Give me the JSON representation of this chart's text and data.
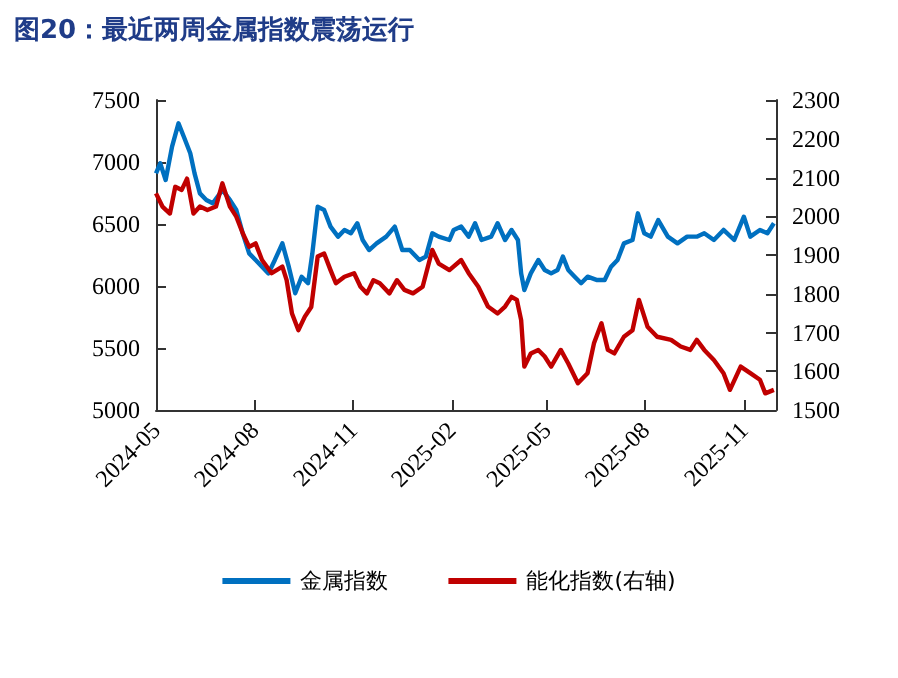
{
  "chart_data": {
    "type": "line",
    "title": "图20：最近两周金属指数震荡运行",
    "xlim": [
      "2024-05-01",
      "2025-12-01"
    ],
    "xticks": [
      "2024-05",
      "2024-08",
      "2024-11",
      "2025-02",
      "2025-05",
      "2025-08",
      "2025-11"
    ],
    "ylim": [
      5000,
      7500
    ],
    "yticks": [
      5000,
      5500,
      6000,
      6500,
      7000,
      7500
    ],
    "y2lim": [
      1500,
      2300
    ],
    "y2ticks": [
      1500,
      1600,
      1700,
      1800,
      1900,
      2000,
      2100,
      2200,
      2300
    ],
    "grid": false,
    "legend": "bottom",
    "marker": "none",
    "line_style": "solid",
    "series": [
      {
        "name": "金属指数",
        "color": "#0070c0",
        "x": [
          "2024-05-01",
          "2024-05-05",
          "2024-05-10",
          "2024-05-16",
          "2024-05-22",
          "2024-05-27",
          "2024-06-02",
          "2024-06-06",
          "2024-06-11",
          "2024-06-17",
          "2024-06-23",
          "2024-07-02",
          "2024-07-09",
          "2024-07-15",
          "2024-07-21",
          "2024-07-27",
          "2024-08-02",
          "2024-08-08",
          "2024-08-14",
          "2024-08-20",
          "2024-08-27",
          "2024-09-02",
          "2024-09-08",
          "2024-09-14",
          "2024-09-20",
          "2024-09-24",
          "2024-09-29",
          "2024-10-05",
          "2024-10-11",
          "2024-10-18",
          "2024-10-24",
          "2024-10-30",
          "2024-11-05",
          "2024-11-10",
          "2024-11-16",
          "2024-11-23",
          "2024-12-02",
          "2024-12-10",
          "2024-12-17",
          "2024-12-24",
          "2025-01-02",
          "2025-01-08",
          "2025-01-14",
          "2025-01-20",
          "2025-01-30",
          "2025-02-03",
          "2025-02-10",
          "2025-02-17",
          "2025-02-23",
          "2025-03-01",
          "2025-03-10",
          "2025-03-16",
          "2025-03-23",
          "2025-03-29",
          "2025-04-04",
          "2025-04-07",
          "2025-04-10",
          "2025-04-16",
          "2025-04-23",
          "2025-04-29",
          "2025-05-05",
          "2025-05-11",
          "2025-05-16",
          "2025-05-21",
          "2025-05-27",
          "2025-06-02",
          "2025-06-08",
          "2025-06-17",
          "2025-06-24",
          "2025-06-30",
          "2025-07-06",
          "2025-07-12",
          "2025-07-20",
          "2025-07-25",
          "2025-07-31",
          "2025-08-06",
          "2025-08-13",
          "2025-08-22",
          "2025-08-31",
          "2025-09-09",
          "2025-09-18",
          "2025-09-25",
          "2025-10-04",
          "2025-10-13",
          "2025-10-23",
          "2025-11-01",
          "2025-11-07",
          "2025-11-16",
          "2025-11-23",
          "2025-11-29"
        ],
        "values": [
          6908,
          6989,
          6855,
          7124,
          7312,
          7204,
          7070,
          6908,
          6747,
          6694,
          6667,
          6774,
          6694,
          6613,
          6425,
          6263,
          6210,
          6156,
          6102,
          6210,
          6344,
          6156,
          5941,
          6075,
          6022,
          6263,
          6640,
          6613,
          6479,
          6398,
          6452,
          6425,
          6506,
          6371,
          6290,
          6344,
          6398,
          6479,
          6290,
          6290,
          6210,
          6237,
          6425,
          6398,
          6371,
          6452,
          6479,
          6398,
          6506,
          6371,
          6398,
          6506,
          6371,
          6452,
          6371,
          6102,
          5968,
          6102,
          6210,
          6129,
          6102,
          6129,
          6237,
          6129,
          6075,
          6022,
          6075,
          6048,
          6048,
          6156,
          6210,
          6344,
          6371,
          6586,
          6425,
          6398,
          6532,
          6398,
          6344,
          6398,
          6398,
          6425,
          6371,
          6452,
          6371,
          6559,
          6398,
          6452,
          6425,
          6506
        ]
      },
      {
        "name": "能化指数(右轴)",
        "color": "#c00000",
        "axis": "y2",
        "x": [
          "2024-05-01",
          "2024-05-07",
          "2024-05-14",
          "2024-05-19",
          "2024-05-25",
          "2024-05-30",
          "2024-06-05",
          "2024-06-11",
          "2024-06-18",
          "2024-06-26",
          "2024-07-02",
          "2024-07-09",
          "2024-07-15",
          "2024-07-21",
          "2024-07-27",
          "2024-08-02",
          "2024-08-08",
          "2024-08-17",
          "2024-08-27",
          "2024-08-31",
          "2024-09-05",
          "2024-09-11",
          "2024-09-17",
          "2024-09-23",
          "2024-09-29",
          "2024-10-05",
          "2024-10-11",
          "2024-10-16",
          "2024-10-24",
          "2024-11-02",
          "2024-11-08",
          "2024-11-14",
          "2024-11-20",
          "2024-11-26",
          "2024-12-05",
          "2024-12-12",
          "2024-12-19",
          "2024-12-27",
          "2025-01-05",
          "2025-01-14",
          "2025-01-20",
          "2025-01-30",
          "2025-02-10",
          "2025-02-17",
          "2025-02-26",
          "2025-03-07",
          "2025-03-16",
          "2025-03-23",
          "2025-03-29",
          "2025-04-03",
          "2025-04-07",
          "2025-04-10",
          "2025-04-16",
          "2025-04-23",
          "2025-04-29",
          "2025-05-05",
          "2025-05-14",
          "2025-05-21",
          "2025-05-30",
          "2025-06-08",
          "2025-06-14",
          "2025-06-21",
          "2025-06-27",
          "2025-07-03",
          "2025-07-12",
          "2025-07-20",
          "2025-07-26",
          "2025-08-03",
          "2025-08-12",
          "2025-08-25",
          "2025-09-03",
          "2025-09-12",
          "2025-09-18",
          "2025-09-25",
          "2025-10-04",
          "2025-10-13",
          "2025-10-19",
          "2025-10-29",
          "2025-11-07",
          "2025-11-16",
          "2025-11-21",
          "2025-11-29"
        ],
        "values": [
          2059,
          2025,
          2007,
          2076,
          2068,
          2097,
          2007,
          2025,
          2016,
          2025,
          2085,
          2025,
          1999,
          1956,
          1921,
          1930,
          1887,
          1853,
          1870,
          1835,
          1749,
          1706,
          1741,
          1766,
          1896,
          1904,
          1861,
          1827,
          1844,
          1853,
          1818,
          1801,
          1835,
          1827,
          1801,
          1835,
          1810,
          1801,
          1818,
          1913,
          1878,
          1861,
          1887,
          1853,
          1818,
          1767,
          1749,
          1767,
          1792,
          1784,
          1732,
          1612,
          1646,
          1655,
          1638,
          1612,
          1655,
          1620,
          1569,
          1595,
          1672,
          1724,
          1655,
          1646,
          1689,
          1706,
          1784,
          1715,
          1689,
          1681,
          1664,
          1655,
          1681,
          1655,
          1629,
          1595,
          1552,
          1612,
          1595,
          1578,
          1543,
          1552
        ]
      }
    ]
  }
}
